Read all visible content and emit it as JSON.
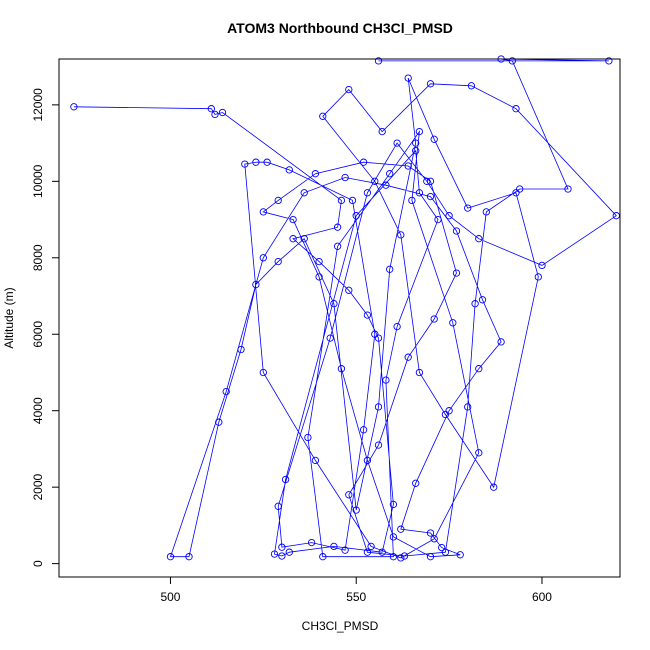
{
  "chart_data": {
    "type": "line",
    "title": "ATOM3 Northbound CH3Cl_PMSD",
    "xlabel": "CH3Cl_PMSD",
    "ylabel": "Altitude (m)",
    "xlim": [
      470,
      621
    ],
    "ylim": [
      -350,
      13200
    ],
    "xticks": [
      500,
      550,
      600
    ],
    "yticks": [
      0,
      2000,
      4000,
      6000,
      8000,
      10000,
      12000
    ],
    "grid": false,
    "marker": "open-circle",
    "color": "#0000ff",
    "series": [
      {
        "points": [
          [
            474,
            11950
          ],
          [
            511,
            11900
          ],
          [
            512,
            11750
          ],
          [
            514,
            11800
          ],
          [
            546,
            9500
          ],
          [
            545,
            8800
          ],
          [
            533,
            8500
          ],
          [
            540,
            7900
          ],
          [
            548,
            7150
          ],
          [
            553,
            6500
          ],
          [
            556,
            5900
          ],
          [
            560,
            1550
          ],
          [
            557,
            300
          ],
          [
            544,
            450
          ],
          [
            532,
            300
          ],
          [
            530,
            200
          ],
          [
            528,
            250
          ],
          [
            531,
            2200
          ],
          [
            550,
            9100
          ],
          [
            566,
            10800
          ],
          [
            567,
            9700
          ],
          [
            572,
            9000
          ],
          [
            561,
            6200
          ],
          [
            558,
            4800
          ],
          [
            560,
            180
          ],
          [
            541,
            180
          ],
          [
            537,
            3300
          ],
          [
            545,
            8300
          ],
          [
            559,
            10200
          ],
          [
            567,
            11300
          ],
          [
            565,
            9500
          ],
          [
            576,
            6300
          ],
          [
            583,
            2900
          ],
          [
            571,
            650
          ],
          [
            562,
            150
          ],
          [
            554,
            450
          ],
          [
            539,
            2700
          ],
          [
            525,
            5000
          ],
          [
            520,
            10450
          ],
          [
            523,
            10500
          ],
          [
            526,
            10500
          ],
          [
            532,
            10300
          ],
          [
            549,
            9500
          ],
          [
            555,
            6000
          ],
          [
            552,
            3500
          ],
          [
            547,
            350
          ],
          [
            538,
            550
          ],
          [
            530,
            430
          ],
          [
            529,
            1500
          ],
          [
            543,
            5900
          ],
          [
            553,
            9700
          ],
          [
            561,
            11000
          ],
          [
            569,
            10000
          ],
          [
            575,
            9100
          ],
          [
            583,
            8500
          ],
          [
            600,
            7800
          ],
          [
            620,
            9100
          ],
          [
            593,
            11900
          ],
          [
            581,
            12500
          ],
          [
            570,
            12550
          ],
          [
            557,
            11300
          ],
          [
            548,
            12400
          ],
          [
            541,
            11700
          ],
          [
            555,
            10000
          ],
          [
            562,
            8600
          ],
          [
            567,
            5000
          ],
          [
            574,
            3900
          ],
          [
            587,
            2000
          ],
          [
            599,
            7500
          ],
          [
            593,
            9700
          ],
          [
            580,
            9300
          ],
          [
            571,
            11100
          ],
          [
            564,
            12700
          ],
          [
            566,
            11000
          ],
          [
            559,
            7700
          ],
          [
            556,
            4100
          ],
          [
            550,
            1400
          ],
          [
            544,
            6800
          ],
          [
            536,
            8500
          ],
          [
            529,
            7900
          ],
          [
            523,
            7300
          ],
          [
            519,
            5600
          ],
          [
            513,
            3700
          ],
          [
            505,
            180
          ],
          [
            500,
            180
          ],
          [
            515,
            4500
          ],
          [
            525,
            8000
          ],
          [
            536,
            9700
          ],
          [
            547,
            10100
          ],
          [
            558,
            9900
          ],
          [
            570,
            9600
          ],
          [
            577,
            8700
          ],
          [
            584,
            6900
          ],
          [
            589,
            5800
          ],
          [
            583,
            5100
          ],
          [
            575,
            4000
          ],
          [
            566,
            2100
          ],
          [
            562,
            900
          ],
          [
            570,
            800
          ],
          [
            573,
            420
          ],
          [
            578,
            230
          ],
          [
            570,
            180
          ],
          [
            560,
            700
          ],
          [
            553,
            2700
          ],
          [
            546,
            5100
          ],
          [
            540,
            7500
          ],
          [
            533,
            9000
          ],
          [
            525,
            9200
          ],
          [
            529,
            9500
          ],
          [
            539,
            10200
          ],
          [
            552,
            10500
          ],
          [
            564,
            10400
          ],
          [
            570,
            10000
          ],
          [
            577,
            7600
          ],
          [
            571,
            6400
          ],
          [
            564,
            5400
          ],
          [
            556,
            3100
          ],
          [
            548,
            1800
          ],
          [
            553,
            300
          ],
          [
            563,
            200
          ],
          [
            574,
            300
          ],
          [
            580,
            4100
          ],
          [
            582,
            6800
          ],
          [
            585,
            9200
          ],
          [
            594,
            9800
          ],
          [
            607,
            9800
          ],
          [
            592,
            13150
          ],
          [
            589,
            13200
          ],
          [
            618,
            13150
          ],
          [
            556,
            13150
          ]
        ]
      }
    ]
  }
}
